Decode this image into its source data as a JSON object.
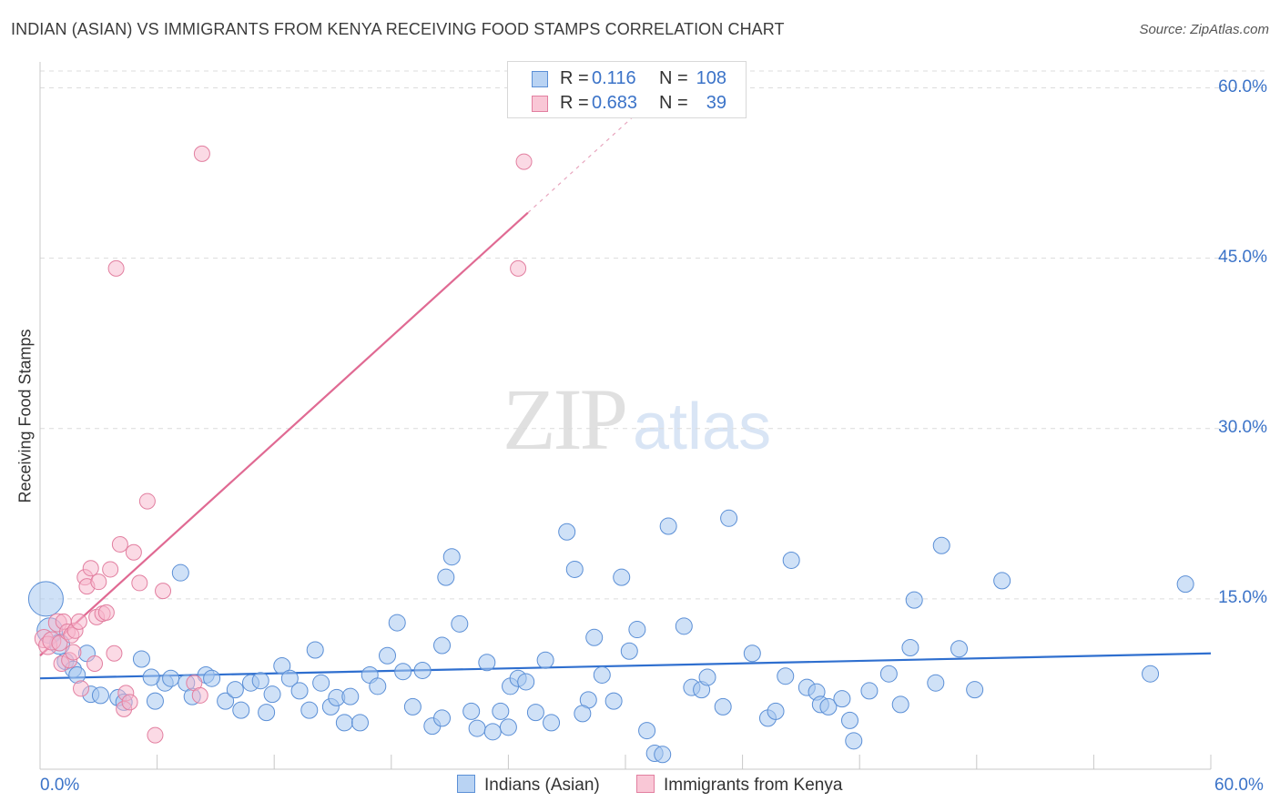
{
  "header": {
    "title": "INDIAN (ASIAN) VS IMMIGRANTS FROM KENYA RECEIVING FOOD STAMPS CORRELATION CHART",
    "source": "Source: ZipAtlas.com"
  },
  "watermark": {
    "part1": "ZIP",
    "part2": "atlas"
  },
  "legend": {
    "rows": [
      {
        "r_label": "R =",
        "r_value": "0.116",
        "n_label": "N =",
        "n_value": "108"
      },
      {
        "r_label": "R =",
        "r_value": "0.683",
        "n_label": "N =",
        "n_value": "39"
      }
    ]
  },
  "colors": {
    "blue_fill": "#a8c8f0",
    "blue_stroke": "#5b8fd6",
    "blue_line": "#2f6fcf",
    "pink_fill": "#f7b6cb",
    "pink_stroke": "#e27fa0",
    "pink_line": "#e06a93",
    "axis_label": "#3b73c8",
    "grid": "#dcdcdc"
  },
  "chart_data": {
    "type": "scatter",
    "title": "INDIAN (ASIAN) VS IMMIGRANTS FROM KENYA RECEIVING FOOD STAMPS CORRELATION CHART",
    "ylabel": "Receiving Food Stamps",
    "xlim": [
      0,
      60
    ],
    "ylim": [
      0,
      62
    ],
    "x_tick_labels": [
      "0.0%",
      "60.0%"
    ],
    "y_ticks": [
      15,
      30,
      45,
      60
    ],
    "y_tick_labels": [
      "15.0%",
      "30.0%",
      "45.0%",
      "60.0%"
    ],
    "grid": true,
    "legend_position": "top-center",
    "series": [
      {
        "name": "Indians (Asian)",
        "color": "#5b8fd6",
        "r": 0.116,
        "n": 108,
        "trend": {
          "x": [
            0,
            60
          ],
          "y": [
            8.0,
            10.2
          ]
        },
        "points": [
          [
            0.3,
            15.0
          ],
          [
            0.5,
            12.2
          ],
          [
            1.0,
            11.0
          ],
          [
            1.3,
            9.5
          ],
          [
            1.7,
            8.8
          ],
          [
            1.9,
            8.3
          ],
          [
            2.4,
            10.2
          ],
          [
            2.6,
            6.6
          ],
          [
            3.1,
            6.5
          ],
          [
            4.0,
            6.3
          ],
          [
            4.3,
            5.9
          ],
          [
            5.2,
            9.7
          ],
          [
            5.9,
            6.0
          ],
          [
            6.4,
            7.6
          ],
          [
            6.7,
            8.0
          ],
          [
            7.2,
            17.3
          ],
          [
            7.5,
            7.6
          ],
          [
            7.8,
            6.4
          ],
          [
            8.5,
            8.3
          ],
          [
            8.8,
            8.0
          ],
          [
            9.5,
            6.0
          ],
          [
            10.0,
            7.0
          ],
          [
            10.3,
            5.2
          ],
          [
            10.8,
            7.6
          ],
          [
            11.3,
            7.8
          ],
          [
            11.6,
            5.0
          ],
          [
            11.9,
            6.6
          ],
          [
            12.4,
            9.1
          ],
          [
            12.8,
            8.0
          ],
          [
            13.3,
            6.9
          ],
          [
            13.8,
            5.2
          ],
          [
            14.1,
            10.5
          ],
          [
            14.4,
            7.6
          ],
          [
            14.9,
            5.5
          ],
          [
            15.2,
            6.3
          ],
          [
            15.6,
            4.1
          ],
          [
            15.9,
            6.4
          ],
          [
            16.4,
            4.1
          ],
          [
            16.9,
            8.3
          ],
          [
            17.3,
            7.3
          ],
          [
            17.8,
            10.0
          ],
          [
            18.3,
            12.9
          ],
          [
            18.6,
            8.6
          ],
          [
            19.1,
            5.5
          ],
          [
            19.6,
            8.7
          ],
          [
            20.1,
            3.8
          ],
          [
            20.6,
            10.9
          ],
          [
            20.8,
            16.9
          ],
          [
            21.1,
            18.7
          ],
          [
            21.5,
            12.8
          ],
          [
            22.1,
            5.1
          ],
          [
            22.4,
            3.6
          ],
          [
            22.9,
            9.4
          ],
          [
            23.2,
            3.3
          ],
          [
            23.6,
            5.1
          ],
          [
            24.1,
            7.3
          ],
          [
            24.5,
            8.0
          ],
          [
            24.9,
            7.7
          ],
          [
            25.4,
            5.0
          ],
          [
            25.9,
            9.6
          ],
          [
            26.2,
            4.1
          ],
          [
            27.0,
            20.9
          ],
          [
            27.4,
            17.6
          ],
          [
            28.1,
            6.1
          ],
          [
            28.4,
            11.6
          ],
          [
            28.8,
            8.3
          ],
          [
            29.4,
            6.0
          ],
          [
            29.8,
            16.9
          ],
          [
            30.2,
            10.4
          ],
          [
            30.6,
            12.3
          ],
          [
            31.1,
            3.4
          ],
          [
            31.5,
            1.4
          ],
          [
            31.9,
            1.3
          ],
          [
            32.2,
            21.4
          ],
          [
            33.0,
            12.6
          ],
          [
            33.4,
            7.2
          ],
          [
            33.9,
            7.0
          ],
          [
            34.2,
            8.1
          ],
          [
            35.0,
            5.5
          ],
          [
            35.3,
            22.1
          ],
          [
            36.5,
            10.2
          ],
          [
            37.3,
            4.5
          ],
          [
            37.7,
            5.1
          ],
          [
            38.2,
            8.2
          ],
          [
            38.5,
            18.4
          ],
          [
            39.3,
            7.2
          ],
          [
            39.8,
            6.8
          ],
          [
            40.0,
            5.7
          ],
          [
            40.4,
            5.5
          ],
          [
            41.1,
            6.2
          ],
          [
            41.5,
            4.3
          ],
          [
            41.7,
            2.5
          ],
          [
            42.5,
            6.9
          ],
          [
            43.5,
            8.4
          ],
          [
            44.1,
            5.7
          ],
          [
            44.6,
            10.7
          ],
          [
            44.8,
            14.9
          ],
          [
            45.9,
            7.6
          ],
          [
            46.2,
            19.7
          ],
          [
            47.1,
            10.6
          ],
          [
            47.9,
            7.0
          ],
          [
            49.3,
            16.6
          ],
          [
            56.9,
            8.4
          ],
          [
            58.7,
            16.3
          ],
          [
            20.6,
            4.5
          ],
          [
            24.0,
            3.7
          ],
          [
            27.8,
            4.9
          ],
          [
            5.7,
            8.1
          ]
        ]
      },
      {
        "name": "Immigrants from Kenya",
        "color": "#e27fa0",
        "r": 0.683,
        "n": 39,
        "trend": {
          "x": [
            0,
            25.0
          ],
          "y": [
            10.0,
            49.0
          ]
        },
        "trend_dashed": {
          "x": [
            25.0,
            31.5
          ],
          "y": [
            49.0,
            59.2
          ]
        },
        "points": [
          [
            0.2,
            11.5
          ],
          [
            0.4,
            10.9
          ],
          [
            0.6,
            11.3
          ],
          [
            0.9,
            12.9
          ],
          [
            1.0,
            11.1
          ],
          [
            1.1,
            9.3
          ],
          [
            1.2,
            13.0
          ],
          [
            1.4,
            12.1
          ],
          [
            1.5,
            9.6
          ],
          [
            1.6,
            11.8
          ],
          [
            1.7,
            10.3
          ],
          [
            1.8,
            12.2
          ],
          [
            2.0,
            13.0
          ],
          [
            2.1,
            7.1
          ],
          [
            2.3,
            16.9
          ],
          [
            2.4,
            16.1
          ],
          [
            2.6,
            17.7
          ],
          [
            2.8,
            9.3
          ],
          [
            2.9,
            13.4
          ],
          [
            3.0,
            16.5
          ],
          [
            3.2,
            13.7
          ],
          [
            3.4,
            13.8
          ],
          [
            3.6,
            17.6
          ],
          [
            3.8,
            10.2
          ],
          [
            3.9,
            44.1
          ],
          [
            4.1,
            19.8
          ],
          [
            4.3,
            5.3
          ],
          [
            4.4,
            6.7
          ],
          [
            4.6,
            5.9
          ],
          [
            4.8,
            19.1
          ],
          [
            5.1,
            16.4
          ],
          [
            5.5,
            23.6
          ],
          [
            5.9,
            3.0
          ],
          [
            6.3,
            15.7
          ],
          [
            7.9,
            7.6
          ],
          [
            8.2,
            6.5
          ],
          [
            8.3,
            54.2
          ],
          [
            24.5,
            44.1
          ],
          [
            24.8,
            53.5
          ]
        ]
      }
    ]
  }
}
